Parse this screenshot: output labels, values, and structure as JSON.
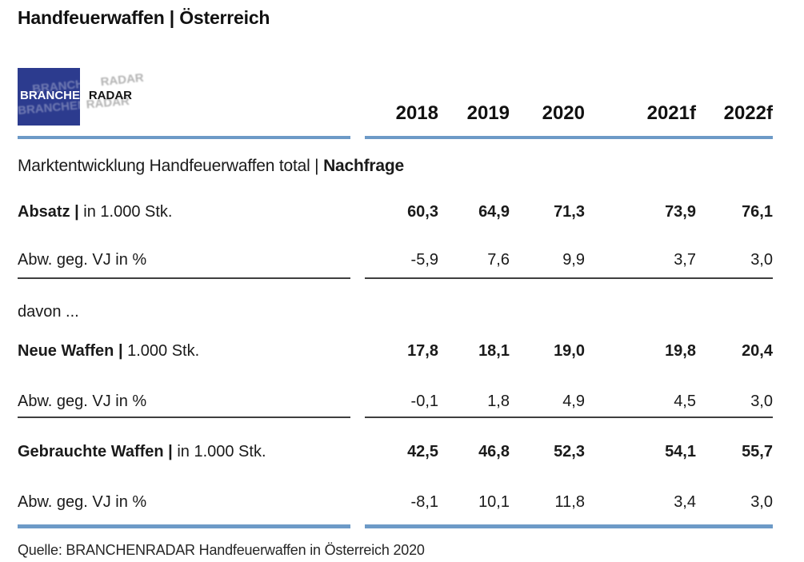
{
  "title": "Handfeuerwaffen | Österreich",
  "logo": {
    "brand_left": "BRANCHEN",
    "brand_right": "RADAR"
  },
  "table": {
    "columns": [
      "2018",
      "2019",
      "2020",
      "2021f",
      "2022f"
    ],
    "section_title": {
      "regular": "Marktentwicklung Handfeuerwaffen total | ",
      "bold": "Nachfrage"
    },
    "davon_label": "davon ...",
    "rows": [
      {
        "label_bold": "Absatz | ",
        "label_unit": "in 1.000 Stk.",
        "values": [
          "60,3",
          "64,9",
          "71,3",
          "73,9",
          "76,1"
        ]
      },
      {
        "label_unit": "Abw. geg. VJ in %",
        "values": [
          "-5,9",
          "7,6",
          "9,9",
          "3,7",
          "3,0"
        ]
      },
      {
        "label_bold": "Neue Waffen | ",
        "label_unit": "1.000 Stk.",
        "values": [
          "17,8",
          "18,1",
          "19,0",
          "19,8",
          "20,4"
        ]
      },
      {
        "label_unit": "Abw. geg. VJ in %",
        "values": [
          "-0,1",
          "1,8",
          "4,9",
          "4,5",
          "3,0"
        ]
      },
      {
        "label_bold": "Gebrauchte Waffen | ",
        "label_unit": "in 1.000 Stk.",
        "values": [
          "42,5",
          "46,8",
          "52,3",
          "54,1",
          "55,7"
        ]
      },
      {
        "label_unit": "Abw. geg. VJ in %",
        "values": [
          "-8,1",
          "10,1",
          "11,8",
          "3,4",
          "3,0"
        ]
      }
    ]
  },
  "source": "Quelle: BRANCHENRADAR Handfeuerwaffen in Österreich 2020",
  "colors": {
    "accent_blue": "#6D9AC7",
    "logo_blue": "#2C3B8E",
    "divider_dark": "#3F3F3F",
    "text": "#1A1A1A"
  }
}
